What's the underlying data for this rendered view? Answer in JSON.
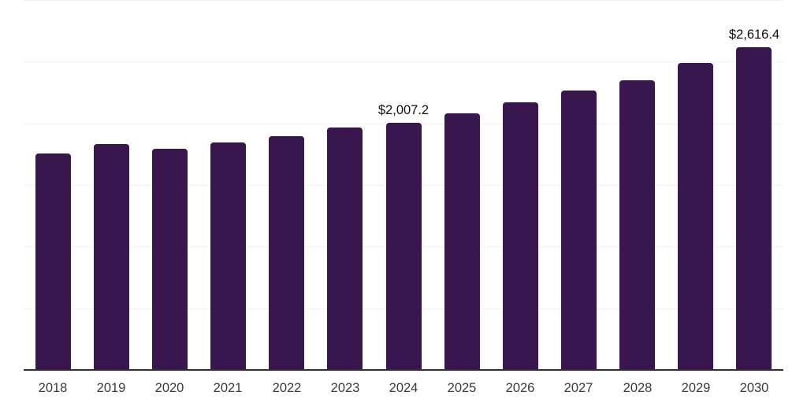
{
  "chart_data": {
    "type": "bar",
    "title": "",
    "xlabel": "",
    "ylabel": "",
    "categories": [
      "2018",
      "2019",
      "2020",
      "2021",
      "2022",
      "2023",
      "2024",
      "2025",
      "2026",
      "2027",
      "2028",
      "2029",
      "2030"
    ],
    "values": [
      1754,
      1834,
      1793,
      1847,
      1898,
      1968,
      2007.2,
      2083,
      2168,
      2268,
      2351,
      2491,
      2616.4
    ],
    "data_labels": {
      "2024": "$2,007.2",
      "2030": "$2,616.4"
    },
    "ylim": [
      0,
      3000
    ],
    "gridline_step": 500,
    "grid": true,
    "legend": false,
    "y_axis_labels_visible": false,
    "colors": {
      "bar": "#3A164F",
      "background": "#FFFFFF",
      "gridline": "#F1F1F4",
      "axis_line": "#2F2F2F",
      "tick_label": "#3A3A3A",
      "data_label": "#101010"
    }
  }
}
